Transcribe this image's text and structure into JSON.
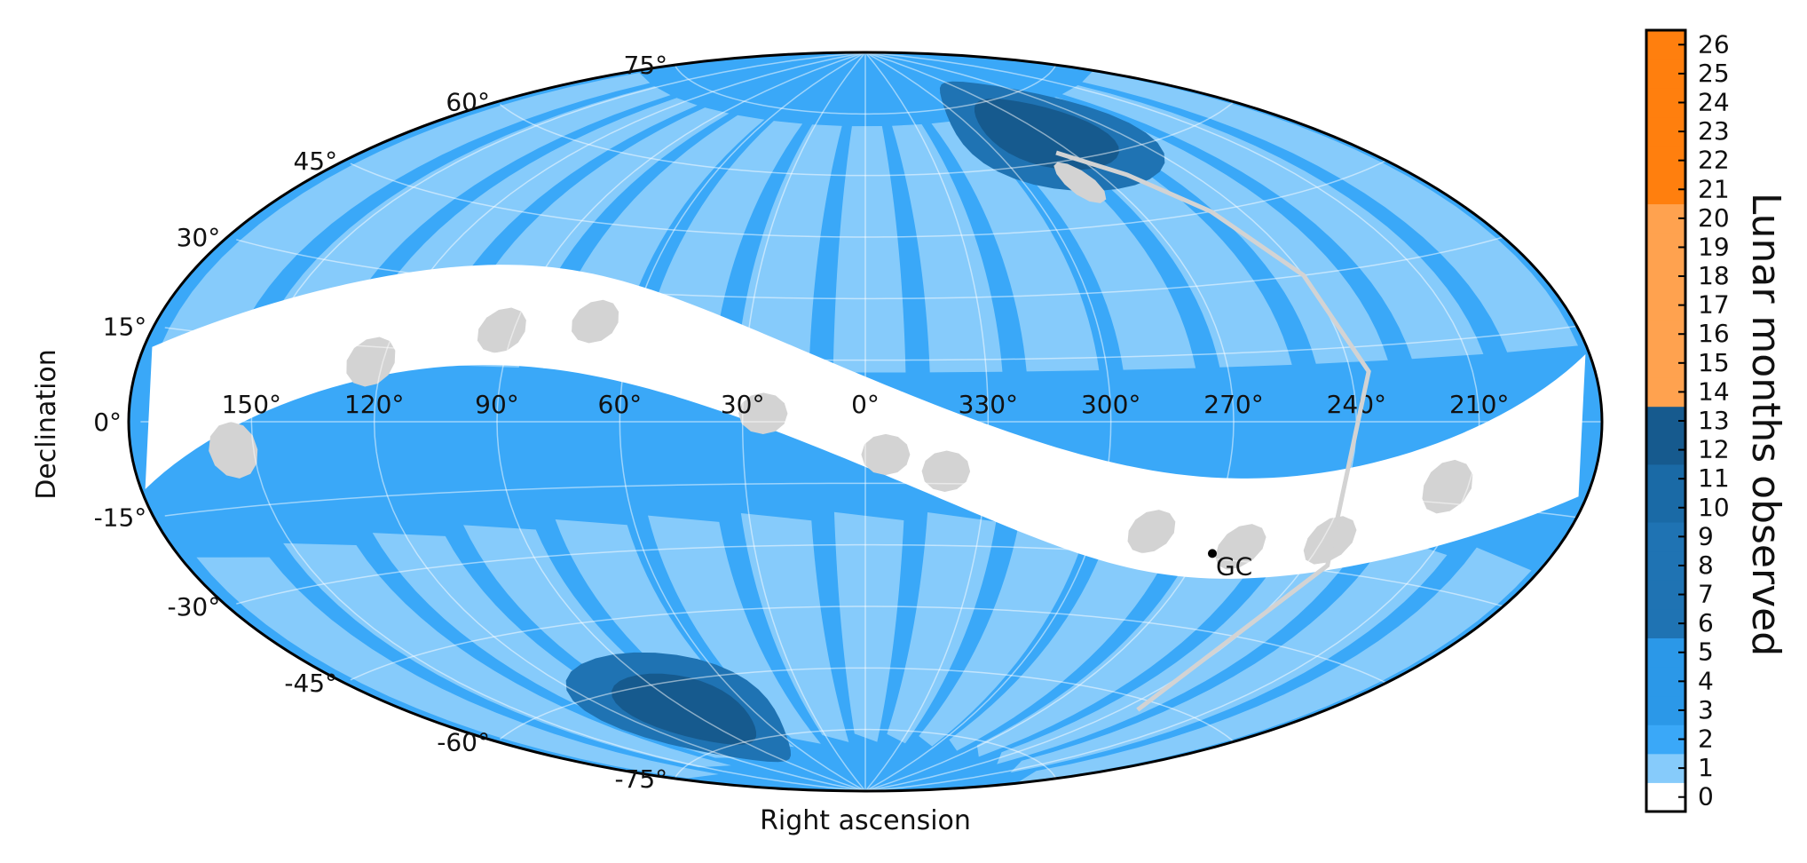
{
  "chart_data": {
    "type": "heatmap",
    "projection": "aitoff",
    "title": "",
    "xlabel": "Right ascension",
    "ylabel": "Declination",
    "colorbar_label": "Lunar months observed",
    "ra_tick_labels": [
      "150°",
      "120°",
      "90°",
      "60°",
      "30°",
      "0°",
      "330°",
      "300°",
      "270°",
      "240°",
      "210°"
    ],
    "dec_tick_labels": [
      "75°",
      "60°",
      "45°",
      "30°",
      "15°",
      "0°",
      "-15°",
      "-30°",
      "-45°",
      "-60°",
      "-75°"
    ],
    "colorbar_ticks": [
      0,
      1,
      2,
      3,
      4,
      5,
      6,
      7,
      8,
      9,
      10,
      11,
      12,
      13,
      14,
      15,
      16,
      17,
      18,
      19,
      20,
      21,
      22,
      23,
      24,
      25,
      26
    ],
    "color_bands": [
      {
        "range": [
          0,
          0
        ],
        "color": "#ffffff"
      },
      {
        "range": [
          1,
          1
        ],
        "color": "#86cbfb"
      },
      {
        "range": [
          2,
          2
        ],
        "color": "#3aa8f8"
      },
      {
        "range": [
          3,
          5
        ],
        "color": "#2b98e8"
      },
      {
        "range": [
          6,
          9
        ],
        "color": "#1f73b3"
      },
      {
        "range": [
          10,
          11
        ],
        "color": "#1a6aa6"
      },
      {
        "range": [
          12,
          13
        ],
        "color": "#165a8e"
      },
      {
        "range": [
          14,
          20
        ],
        "color": "#ffa24f"
      },
      {
        "range": [
          21,
          26
        ],
        "color": "#ff7f0e"
      }
    ],
    "grid": true,
    "galactic_plane_color": "#d3d3d3",
    "unobserved_field_color": "#d3d3d3",
    "annotation": {
      "label": "GC",
      "ra_deg": 266.4,
      "dec_deg": -28.9
    }
  }
}
